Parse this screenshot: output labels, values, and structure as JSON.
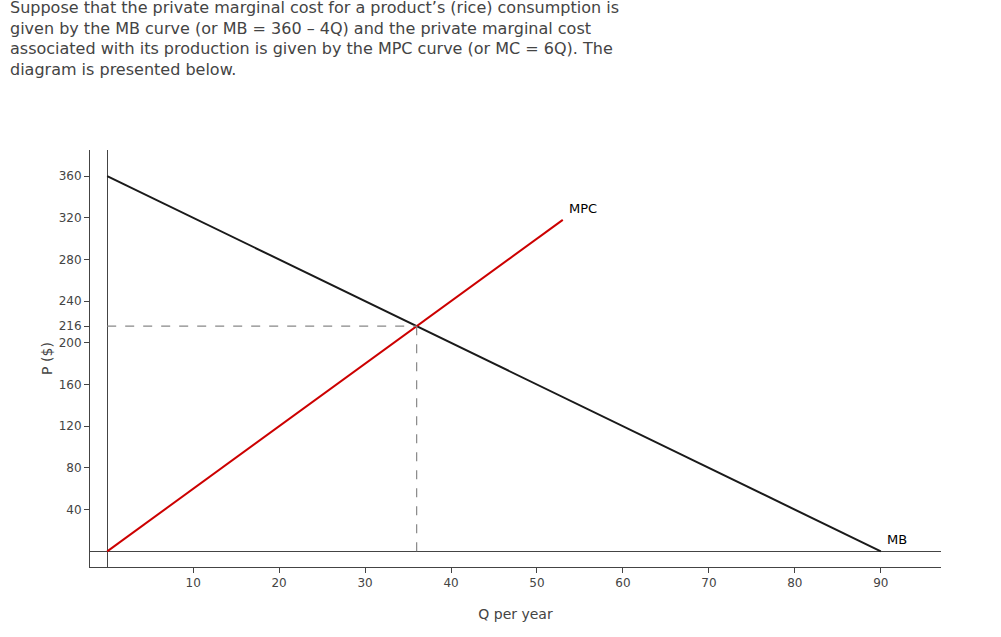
{
  "chart_data": {
    "type": "line",
    "title": "Suppose that the private marginal cost for a product’s (rice) consumption is\ngiven by the MB curve (or MB = 360 – 4Q) and the private marginal cost\nassociated with its production is given by the MPC curve (or MC = 6Q). The\ndiagram is presented below.",
    "xlabel": "Q per year",
    "ylabel": "P ($)",
    "series": [
      {
        "name": "MB",
        "color": "#1a1a1a",
        "line_style": "solid",
        "x": [
          0,
          90
        ],
        "values": [
          360,
          0
        ]
      },
      {
        "name": "MPC",
        "color": "#cc0000",
        "line_style": "solid",
        "x": [
          0,
          53
        ],
        "values": [
          0,
          318
        ]
      },
      {
        "color": "#888888",
        "line_style": "dashed",
        "x": [
          0,
          36
        ],
        "values": [
          216,
          216
        ]
      },
      {
        "color": "#888888",
        "line_style": "dashed",
        "x": [
          36,
          36
        ],
        "values": [
          0,
          216
        ]
      }
    ],
    "xlim": [
      -2,
      97
    ],
    "ylim": [
      -15,
      385
    ],
    "xticks": [
      10,
      20,
      30,
      40,
      50,
      60,
      70,
      80,
      90
    ],
    "yticks": [
      40,
      80,
      120,
      160,
      200,
      216,
      240,
      280,
      320,
      360
    ],
    "grid": false
  }
}
